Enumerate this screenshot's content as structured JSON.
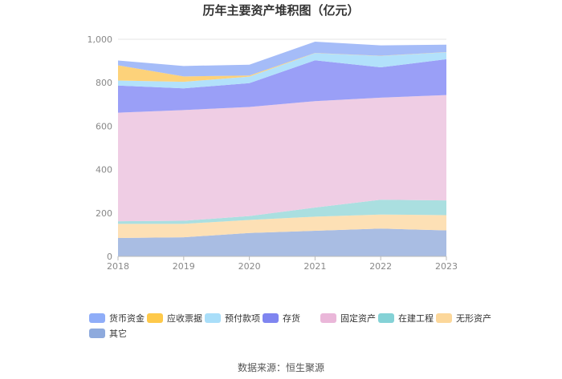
{
  "chart_data": {
    "type": "area",
    "stacked": true,
    "title": "历年主要资产堆积图（亿元）",
    "x": [
      "2018",
      "2019",
      "2020",
      "2021",
      "2022",
      "2023"
    ],
    "y_ticks": [
      "0",
      "200",
      "400",
      "600",
      "800",
      "1,000"
    ],
    "ylim": [
      0,
      1000
    ],
    "grid": true,
    "legend_position": "bottom",
    "series": [
      {
        "name": "其它",
        "color": "#a9bde3",
        "values": [
          85,
          88,
          108,
          118,
          128,
          120
        ]
      },
      {
        "name": "无形资产",
        "color": "#fde0b5",
        "values": [
          65,
          62,
          60,
          65,
          65,
          70
        ]
      },
      {
        "name": "在建工程",
        "color": "#aadfe0",
        "values": [
          12,
          14,
          18,
          42,
          68,
          68
        ]
      },
      {
        "name": "固定资产",
        "color": "#efcde4",
        "values": [
          500,
          510,
          502,
          490,
          470,
          485
        ]
      },
      {
        "name": "存货",
        "color": "#9a9ff7",
        "values": [
          125,
          100,
          110,
          188,
          140,
          165
        ]
      },
      {
        "name": "预付款项",
        "color": "#b2e1fb",
        "values": [
          23,
          30,
          30,
          33,
          52,
          32
        ]
      },
      {
        "name": "应收票据",
        "color": "#fdd27a",
        "values": [
          70,
          25,
          5,
          1,
          1,
          1
        ]
      },
      {
        "name": "货币资金",
        "color": "#a5bcf8",
        "values": [
          22,
          48,
          50,
          52,
          48,
          34
        ]
      }
    ],
    "legend": [
      {
        "name": "货币资金",
        "color": "#8fadf8"
      },
      {
        "name": "应收票据",
        "color": "#fec94a"
      },
      {
        "name": "预付款项",
        "color": "#a9def9"
      },
      {
        "name": "存货",
        "color": "#7f85f0"
      },
      {
        "name": "固定资产",
        "color": "#eab7d9"
      },
      {
        "name": "在建工程",
        "color": "#84d2d6"
      },
      {
        "name": "无形资产",
        "color": "#fcd79a"
      },
      {
        "name": "其它",
        "color": "#8eaadd"
      }
    ],
    "source": "数据来源：恒生聚源"
  }
}
